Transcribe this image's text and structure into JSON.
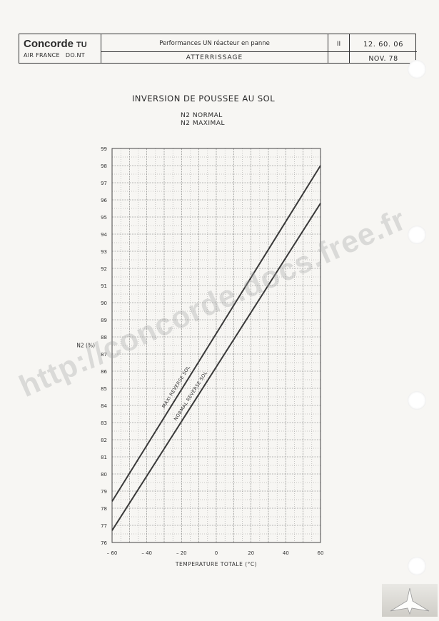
{
  "header": {
    "brand": "Concorde",
    "brand_suffix": "TU",
    "airline": "AIR FRANCE",
    "dept": "DO.NT",
    "section": "Performances UN réacteur en panne",
    "subsection": "ATTERRISSAGE",
    "volume": "II",
    "code": "12. 60. 06",
    "date": "NOV. 78"
  },
  "watermark": "http://concorde.docs.free.fr",
  "chart_data": {
    "type": "line",
    "title": "INVERSION DE POUSSEE AU SOL",
    "subtitle_lines": [
      "N2  NORMAL",
      "N2  MAXIMAL"
    ],
    "xlabel": "TEMPERATURE TOTALE (°C)",
    "ylabel": "N2 (%)",
    "xlim": [
      -60,
      60
    ],
    "ylim": [
      76,
      99
    ],
    "xticks": [
      -60,
      -40,
      -20,
      0,
      20,
      40,
      60
    ],
    "xtick_labels": [
      "– 60",
      "– 40",
      "– 20",
      "0",
      "20",
      "40",
      "60"
    ],
    "yticks": [
      76,
      77,
      78,
      79,
      80,
      81,
      82,
      83,
      84,
      85,
      86,
      87,
      88,
      89,
      90,
      91,
      92,
      93,
      94,
      95,
      96,
      97,
      98,
      99
    ],
    "grid": true,
    "series": [
      {
        "name": "MAXI REVERSE SOL",
        "x": [
          -60,
          60
        ],
        "y": [
          78.4,
          98.0
        ]
      },
      {
        "name": "NORMAL REVERSE SOL",
        "x": [
          -60,
          60
        ],
        "y": [
          76.7,
          95.8
        ]
      }
    ]
  }
}
